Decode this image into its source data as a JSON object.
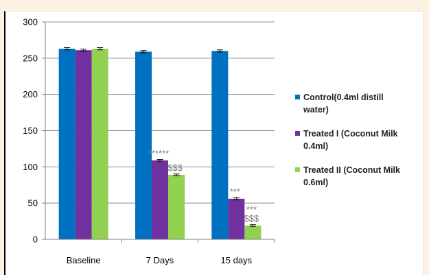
{
  "chart_data": {
    "type": "bar",
    "categories": [
      "Baseline",
      "7 Days",
      "15 days"
    ],
    "series": [
      {
        "name": "Control(0.4ml distill water)",
        "legend_lines": [
          "Control(0.4ml distill",
          "water)"
        ],
        "color": "#0070c0",
        "values": [
          263,
          259,
          260
        ],
        "errors": [
          1.5,
          1.5,
          1.5
        ],
        "annotations": [
          "",
          "",
          ""
        ]
      },
      {
        "name": "Treated I (Coconut Milk 0.4ml)",
        "legend_lines": [
          "Treated I (Coconut Milk",
          "0.4ml)"
        ],
        "color": "#7030a0",
        "values": [
          261,
          109,
          56
        ],
        "errors": [
          1.5,
          1.2,
          1.5
        ],
        "annotations": [
          "",
          "******",
          "***"
        ]
      },
      {
        "name": "Treated II (Coconut Milk 0.6ml)",
        "legend_lines": [
          "Treated II (Coconut Milk",
          "0.6ml)"
        ],
        "color": "#92d050",
        "values": [
          263,
          89,
          19
        ],
        "errors": [
          1.5,
          1.2,
          1.2
        ],
        "annotations": [
          "",
          "$$$",
          "***\n$$$"
        ]
      }
    ],
    "ylim": [
      0,
      300
    ],
    "yticks": [
      0,
      50,
      100,
      150,
      200,
      250,
      300
    ],
    "grid": true,
    "legend": "right"
  }
}
